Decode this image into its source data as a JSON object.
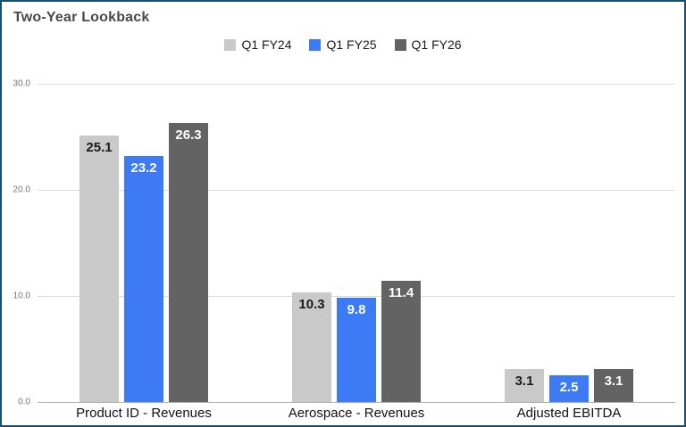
{
  "title": "Two-Year Lookback",
  "chart_data": {
    "type": "bar",
    "title": "Two-Year Lookback",
    "categories": [
      "Product ID - Revenues",
      "Aerospace - Revenues",
      "Adjusted EBITDA"
    ],
    "series": [
      {
        "name": "Q1 FY24",
        "values": [
          25.1,
          10.3,
          3.1
        ],
        "color": "#c9c9c9",
        "label_color": "#1a1a1a"
      },
      {
        "name": "Q1 FY25",
        "values": [
          23.2,
          9.8,
          2.5
        ],
        "color": "#3d7af5",
        "label_color": "#ffffff"
      },
      {
        "name": "Q1 FY26",
        "values": [
          26.3,
          11.4,
          3.1
        ],
        "color": "#636363",
        "label_color": "#ffffff"
      }
    ],
    "ylim": [
      0,
      30
    ],
    "yticks": [
      "0.0",
      "10.0",
      "20.0",
      "30.0"
    ],
    "grid": true,
    "legend_position": "top",
    "xlabel": "",
    "ylabel": ""
  },
  "colors": {
    "frame_border": "#1d4d6b",
    "title_text": "#4a4a4a",
    "gridline": "#dcdcdc",
    "axis_line": "#b3b3b3",
    "tick_text": "#757575"
  }
}
